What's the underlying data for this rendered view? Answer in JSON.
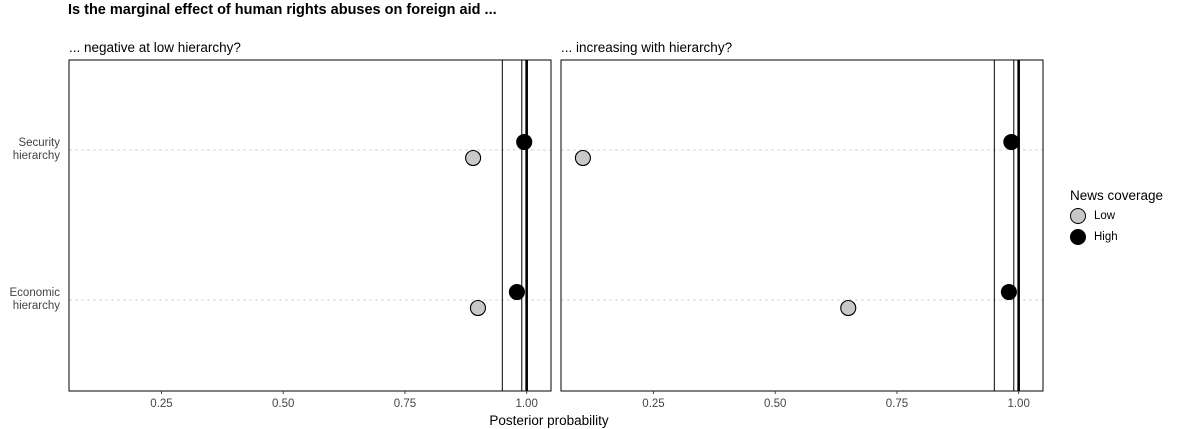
{
  "chart_data": {
    "type": "scatter",
    "title": "Is the marginal effect of human rights abuses on foreign aid ...",
    "xlabel": "Posterior probability",
    "ylabel": "",
    "xlim": [
      0.06,
      1.05
    ],
    "x_ticks": [
      "0.25",
      "0.50",
      "0.75",
      "1.00"
    ],
    "x_tick_values": [
      0.25,
      0.5,
      0.75,
      1.0
    ],
    "categories": [
      "Security\nhierarchy",
      "Economic\nhierarchy"
    ],
    "category_lines": [
      [
        "Security",
        "hierarchy"
      ],
      [
        "Economic",
        "hierarchy"
      ]
    ],
    "reference_lines": [
      0.95,
      0.99,
      1.0
    ],
    "grid": "dashed horizontal at categories",
    "legend": {
      "title": "News coverage",
      "position": "right",
      "entries": [
        {
          "label": "Low",
          "color": "#c8c8c8"
        },
        {
          "label": "High",
          "color": "#000000"
        }
      ]
    },
    "panels": [
      {
        "title": "... negative at low hierarchy?",
        "series": [
          {
            "name": "Low",
            "color": "#c8c8c8",
            "values": [
              0.89,
              0.9
            ]
          },
          {
            "name": "High",
            "color": "#000000",
            "values": [
              0.995,
              0.98
            ]
          }
        ]
      },
      {
        "title": "...  increasing with hierarchy?",
        "series": [
          {
            "name": "Low",
            "color": "#c8c8c8",
            "values": [
              0.105,
              0.65
            ]
          },
          {
            "name": "High",
            "color": "#000000",
            "values": [
              0.985,
              0.98
            ]
          }
        ]
      }
    ]
  }
}
